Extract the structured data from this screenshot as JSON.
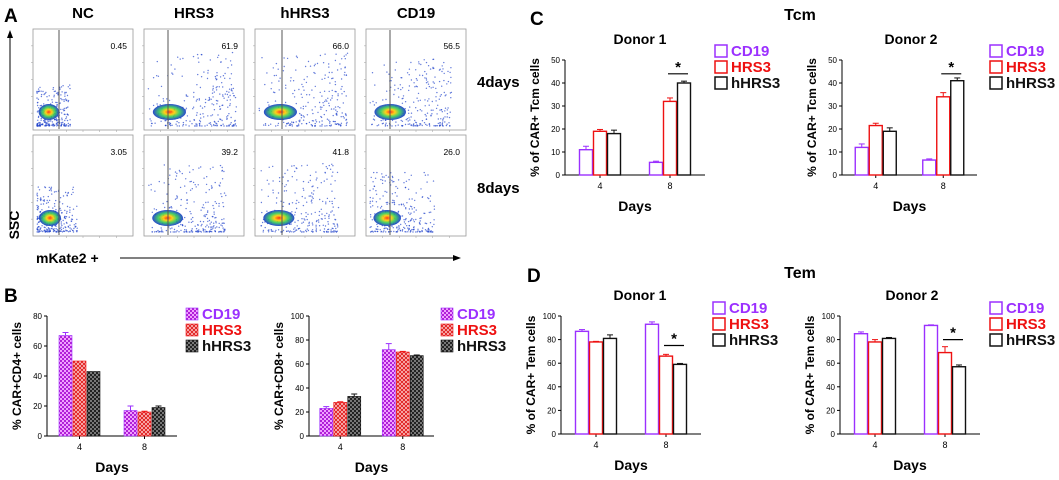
{
  "panel_letters": {
    "a": "A",
    "b": "B",
    "c": "C",
    "d": "D"
  },
  "colors": {
    "cd19": "#9b30ff",
    "hrs3": "#ee1111",
    "hhrs3": "#111111",
    "grid_line": "#555555"
  },
  "flow": {
    "columns": [
      "NC",
      "HRS3",
      "hHRS3",
      "CD19"
    ],
    "rows": [
      "4days",
      "8days"
    ],
    "percents": [
      [
        "0.45",
        "61.9",
        "66.0",
        "56.5"
      ],
      [
        "3.05",
        "39.2",
        "41.8",
        "26.0"
      ]
    ],
    "y_label": "SSC",
    "x_label": "mKate2 +"
  },
  "group_titles": {
    "c": "Tcm",
    "d": "Tem"
  },
  "chart_data": [
    {
      "id": "B-left",
      "type": "bar",
      "title": "",
      "xlabel": "Days",
      "ylabel": "% CAR+CD4+ cells",
      "categories": [
        "4",
        "8"
      ],
      "ylim": [
        0,
        80
      ],
      "yticks": [
        "0",
        "20",
        "40",
        "60",
        "80"
      ],
      "series": [
        {
          "name": "CD19",
          "values": [
            67,
            17
          ],
          "errors": [
            2,
            3
          ]
        },
        {
          "name": "HRS3",
          "values": [
            50,
            16
          ],
          "errors": [
            0,
            0.5
          ]
        },
        {
          "name": "hHRS3",
          "values": [
            43,
            19
          ],
          "errors": [
            0,
            1
          ]
        }
      ],
      "annotations": []
    },
    {
      "id": "B-right",
      "type": "bar",
      "title": "",
      "xlabel": "Days",
      "ylabel": "% CAR+CD8+ cells",
      "categories": [
        "4",
        "8"
      ],
      "ylim": [
        0,
        100
      ],
      "yticks": [
        "0",
        "20",
        "40",
        "60",
        "80",
        "100"
      ],
      "series": [
        {
          "name": "CD19",
          "values": [
            23,
            72
          ],
          "errors": [
            1.5,
            5
          ]
        },
        {
          "name": "HRS3",
          "values": [
            28,
            70
          ],
          "errors": [
            0.5,
            0.5
          ]
        },
        {
          "name": "hHRS3",
          "values": [
            33,
            67
          ],
          "errors": [
            2,
            0.5
          ]
        }
      ],
      "annotations": []
    },
    {
      "id": "C-donor1",
      "type": "bar",
      "title": "Donor 1",
      "xlabel": "Days",
      "ylabel": "% of CAR+ Tcm cells",
      "categories": [
        "4",
        "8"
      ],
      "ylim": [
        0,
        50
      ],
      "yticks": [
        "0",
        "10",
        "20",
        "30",
        "40",
        "50"
      ],
      "series": [
        {
          "name": "CD19",
          "values": [
            11,
            5.5
          ],
          "errors": [
            1.5,
            0.5
          ]
        },
        {
          "name": "HRS3",
          "values": [
            19,
            32
          ],
          "errors": [
            0.8,
            1.5
          ]
        },
        {
          "name": "hHRS3",
          "values": [
            18,
            40
          ],
          "errors": [
            1.5,
            0.8
          ]
        }
      ],
      "annotations": [
        {
          "text": "*",
          "category": "8",
          "from": "HRS3",
          "to": "hHRS3",
          "y": 44
        }
      ]
    },
    {
      "id": "C-donor2",
      "type": "bar",
      "title": "Donor 2",
      "xlabel": "Days",
      "ylabel": "% of CAR+ Tcm cells",
      "categories": [
        "4",
        "8"
      ],
      "ylim": [
        0,
        50
      ],
      "yticks": [
        "0",
        "10",
        "20",
        "30",
        "40",
        "50"
      ],
      "series": [
        {
          "name": "CD19",
          "values": [
            12,
            6.5
          ],
          "errors": [
            1.5,
            0.5
          ]
        },
        {
          "name": "HRS3",
          "values": [
            21.5,
            34
          ],
          "errors": [
            1,
            1.8
          ]
        },
        {
          "name": "hHRS3",
          "values": [
            19,
            41
          ],
          "errors": [
            1.5,
            1.2
          ]
        }
      ],
      "annotations": [
        {
          "text": "*",
          "category": "8",
          "from": "HRS3",
          "to": "hHRS3",
          "y": 44
        }
      ]
    },
    {
      "id": "D-donor1",
      "type": "bar",
      "title": "Donor 1",
      "xlabel": "Days",
      "ylabel": "% of CAR+ Tem cells",
      "categories": [
        "4",
        "8"
      ],
      "ylim": [
        0,
        100
      ],
      "yticks": [
        "0",
        "20",
        "40",
        "60",
        "80",
        "100"
      ],
      "series": [
        {
          "name": "CD19",
          "values": [
            87,
            93
          ],
          "errors": [
            1.5,
            2
          ]
        },
        {
          "name": "HRS3",
          "values": [
            78,
            66
          ],
          "errors": [
            0.5,
            1.5
          ]
        },
        {
          "name": "hHRS3",
          "values": [
            81,
            59
          ],
          "errors": [
            3,
            0.8
          ]
        }
      ],
      "annotations": [
        {
          "text": "*",
          "category": "8",
          "from": "HRS3",
          "to": "hHRS3",
          "y": 75
        }
      ]
    },
    {
      "id": "D-donor2",
      "type": "bar",
      "title": "Donor 2",
      "xlabel": "Days",
      "ylabel": "% of CAR+ Tem cells",
      "categories": [
        "4",
        "8"
      ],
      "ylim": [
        0,
        100
      ],
      "yticks": [
        "0",
        "20",
        "40",
        "60",
        "80",
        "100"
      ],
      "series": [
        {
          "name": "CD19",
          "values": [
            85,
            92
          ],
          "errors": [
            1.5,
            0.5
          ]
        },
        {
          "name": "HRS3",
          "values": [
            78,
            69
          ],
          "errors": [
            2,
            5
          ]
        },
        {
          "name": "hHRS3",
          "values": [
            81,
            57
          ],
          "errors": [
            0.8,
            1.5
          ]
        }
      ],
      "annotations": [
        {
          "text": "*",
          "category": "8",
          "from": "HRS3",
          "to": "hHRS3",
          "y": 80
        }
      ]
    }
  ]
}
